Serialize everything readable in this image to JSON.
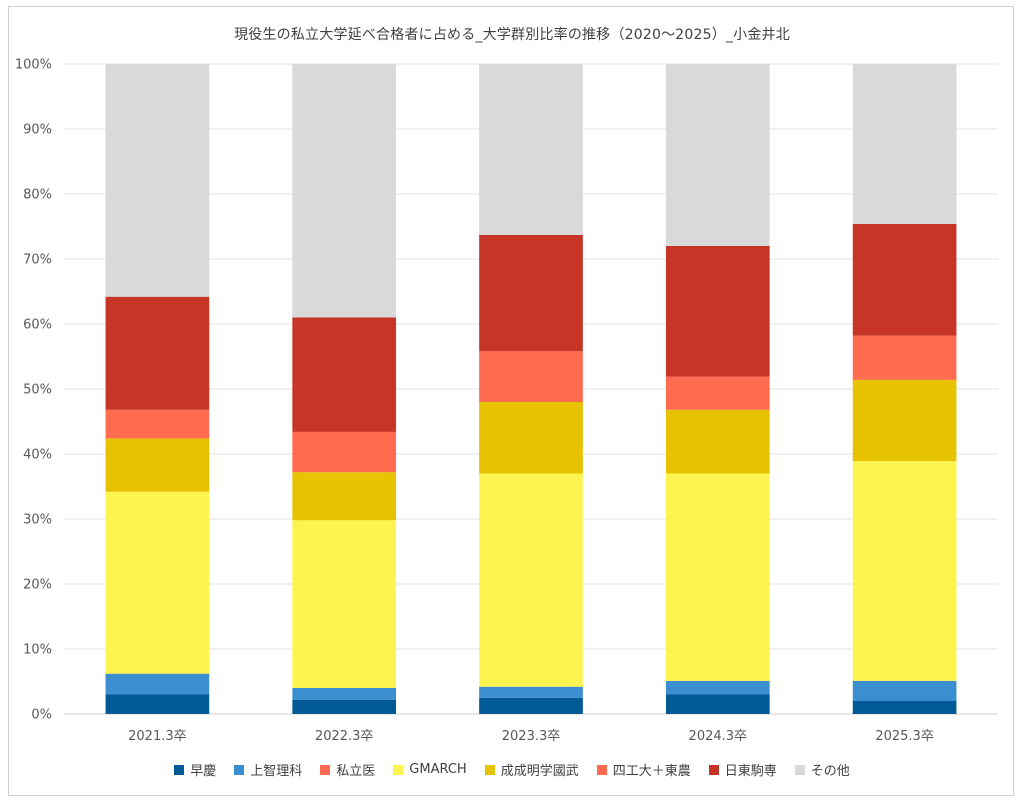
{
  "chart_data": {
    "type": "bar",
    "stacked": true,
    "title": "現役生の私立大学延べ合格者に占める_大学群別比率の推移（2020～2025）_小金井北",
    "categories": [
      "2021.3卒",
      "2022.3卒",
      "2023.3卒",
      "2024.3卒",
      "2025.3卒"
    ],
    "ylim": [
      0,
      100
    ],
    "yticks": [
      "0%",
      "10%",
      "20%",
      "30%",
      "40%",
      "50%",
      "60%",
      "70%",
      "80%",
      "90%",
      "100%"
    ],
    "grid": true,
    "legend_position": "bottom",
    "series": [
      {
        "name": "早慶",
        "color": "#005A95",
        "values": [
          3.0,
          2.2,
          2.5,
          3.0,
          2.0
        ]
      },
      {
        "name": "上智理科",
        "color": "#3B8FD0",
        "values": [
          3.2,
          1.8,
          1.7,
          2.1,
          3.1
        ]
      },
      {
        "name": "私立医",
        "color": "#FF6B4F",
        "values": [
          0,
          0,
          0,
          0,
          0
        ]
      },
      {
        "name": "GMARCH",
        "color": "#FFF44F",
        "values": [
          28.0,
          25.8,
          32.8,
          31.9,
          33.8
        ]
      },
      {
        "name": "成成明学國武",
        "color": "#E6C200",
        "values": [
          8.2,
          7.4,
          11.0,
          9.8,
          12.5
        ]
      },
      {
        "name": "四工大＋東農",
        "color": "#FF6B4F",
        "values": [
          4.4,
          6.2,
          7.8,
          5.1,
          6.8
        ]
      },
      {
        "name": "日東駒専",
        "color": "#C63526",
        "values": [
          17.4,
          17.6,
          17.9,
          20.1,
          17.2
        ]
      },
      {
        "name": "その他",
        "color": "#D9D9D9",
        "values": [
          35.8,
          39.0,
          26.3,
          28.0,
          24.6
        ]
      }
    ]
  }
}
